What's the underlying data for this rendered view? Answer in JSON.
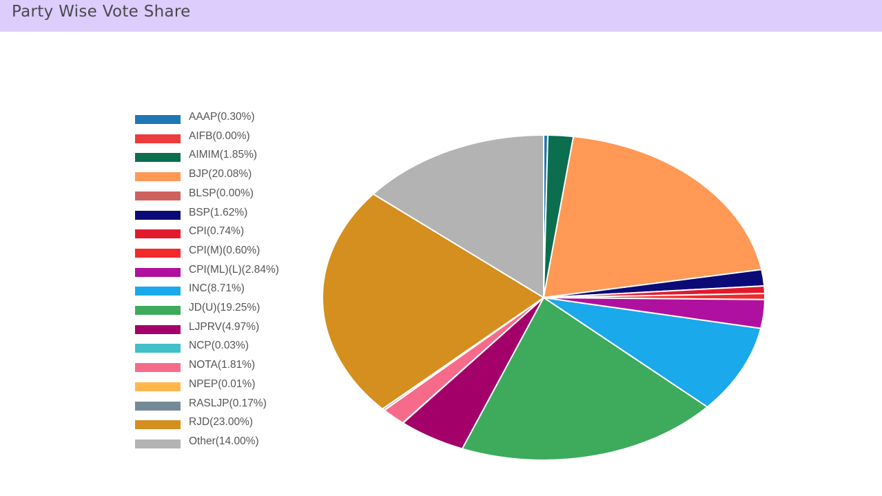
{
  "header": {
    "title": "Party Wise Vote Share"
  },
  "chart_data": {
    "type": "pie",
    "title": "Party Wise Vote Share",
    "legend_position": "left",
    "slices": [
      {
        "label": "AAAP(0.30%)",
        "name": "AAAP",
        "value": 0.3,
        "color": "#1f77b4"
      },
      {
        "label": "AIFB(0.00%)",
        "name": "AIFB",
        "value": 0.0,
        "color": "#ee3b3b"
      },
      {
        "label": "AIMIM(1.85%)",
        "name": "AIMIM",
        "value": 1.85,
        "color": "#0b6e4f"
      },
      {
        "label": "BJP(20.08%)",
        "name": "BJP",
        "value": 20.08,
        "color": "#ff9955"
      },
      {
        "label": "BLSP(0.00%)",
        "name": "BLSP",
        "value": 0.0,
        "color": "#d0605e"
      },
      {
        "label": "BSP(1.62%)",
        "name": "BSP",
        "value": 1.62,
        "color": "#0b0b78"
      },
      {
        "label": "CPI(0.74%)",
        "name": "CPI",
        "value": 0.74,
        "color": "#e31a2d"
      },
      {
        "label": "CPI(M)(0.60%)",
        "name": "CPI(M)",
        "value": 0.6,
        "color": "#f22a2a"
      },
      {
        "label": "CPI(ML)(L)(2.84%)",
        "name": "CPI(ML)(L)",
        "value": 2.84,
        "color": "#b0109f"
      },
      {
        "label": "INC(8.71%)",
        "name": "INC",
        "value": 8.71,
        "color": "#1aa9ea"
      },
      {
        "label": "JD(U)(19.25%)",
        "name": "JD(U)",
        "value": 19.25,
        "color": "#3dab5b"
      },
      {
        "label": "LJPRV(4.97%)",
        "name": "LJPRV",
        "value": 4.97,
        "color": "#a3006a"
      },
      {
        "label": "NCP(0.03%)",
        "name": "NCP",
        "value": 0.03,
        "color": "#40c0c8"
      },
      {
        "label": "NOTA(1.81%)",
        "name": "NOTA",
        "value": 1.81,
        "color": "#f76b8a"
      },
      {
        "label": "NPEP(0.01%)",
        "name": "NPEP",
        "value": 0.01,
        "color": "#ffb74d"
      },
      {
        "label": "RASLJP(0.17%)",
        "name": "RASLJP",
        "value": 0.17,
        "color": "#748a99"
      },
      {
        "label": "RJD(23.00%)",
        "name": "RJD",
        "value": 23.0,
        "color": "#d48f1f"
      },
      {
        "label": "Other(14.00%)",
        "name": "Other",
        "value": 14.0,
        "color": "#b3b3b3"
      }
    ]
  }
}
